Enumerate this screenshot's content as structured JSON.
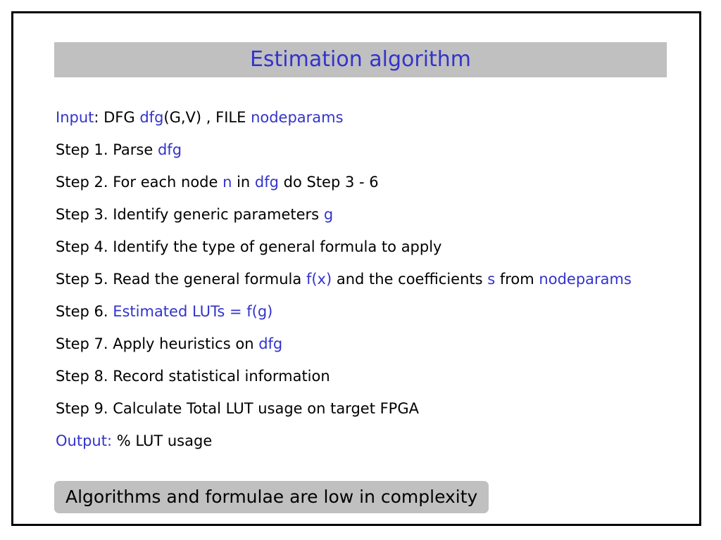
{
  "title": "Estimation algorithm",
  "colors": {
    "highlight": "#3333cc",
    "band": "#c0c0c0",
    "text": "#000000"
  },
  "lines": [
    [
      {
        "t": "Input",
        "h": true
      },
      {
        "t": ": DFG "
      },
      {
        "t": "dfg",
        "h": true
      },
      {
        "t": "(G,V) , FILE "
      },
      {
        "t": "nodeparams",
        "h": true
      }
    ],
    [
      {
        "t": "Step 1. Parse "
      },
      {
        "t": "dfg",
        "h": true
      }
    ],
    [
      {
        "t": "Step 2. For each node "
      },
      {
        "t": "n",
        "h": true
      },
      {
        "t": " in "
      },
      {
        "t": "dfg",
        "h": true
      },
      {
        "t": " do Step 3 - 6"
      }
    ],
    [
      {
        "t": "Step 3. Identify generic parameters "
      },
      {
        "t": "g",
        "h": true
      }
    ],
    [
      {
        "t": "Step 4. Identify the type of general formula to apply"
      }
    ],
    [
      {
        "t": "Step 5. Read the general formula "
      },
      {
        "t": "f(x)",
        "h": true
      },
      {
        "t": " and the coefficients "
      },
      {
        "t": "s",
        "h": true
      },
      {
        "t": " from "
      },
      {
        "t": "nodeparams",
        "h": true
      }
    ],
    [
      {
        "t": "Step 6. "
      },
      {
        "t": "Estimated LUTs = f(g)",
        "h": true
      }
    ],
    [
      {
        "t": "Step 7. Apply heuristics on "
      },
      {
        "t": "dfg",
        "h": true
      }
    ],
    [
      {
        "t": "Step 8. Record statistical information"
      }
    ],
    [
      {
        "t": "Step 9. Calculate Total LUT usage on target FPGA"
      }
    ],
    [
      {
        "t": "Output:",
        "h": true
      },
      {
        "t": " % LUT usage"
      }
    ]
  ],
  "note": "Algorithms and formulae are low in complexity"
}
